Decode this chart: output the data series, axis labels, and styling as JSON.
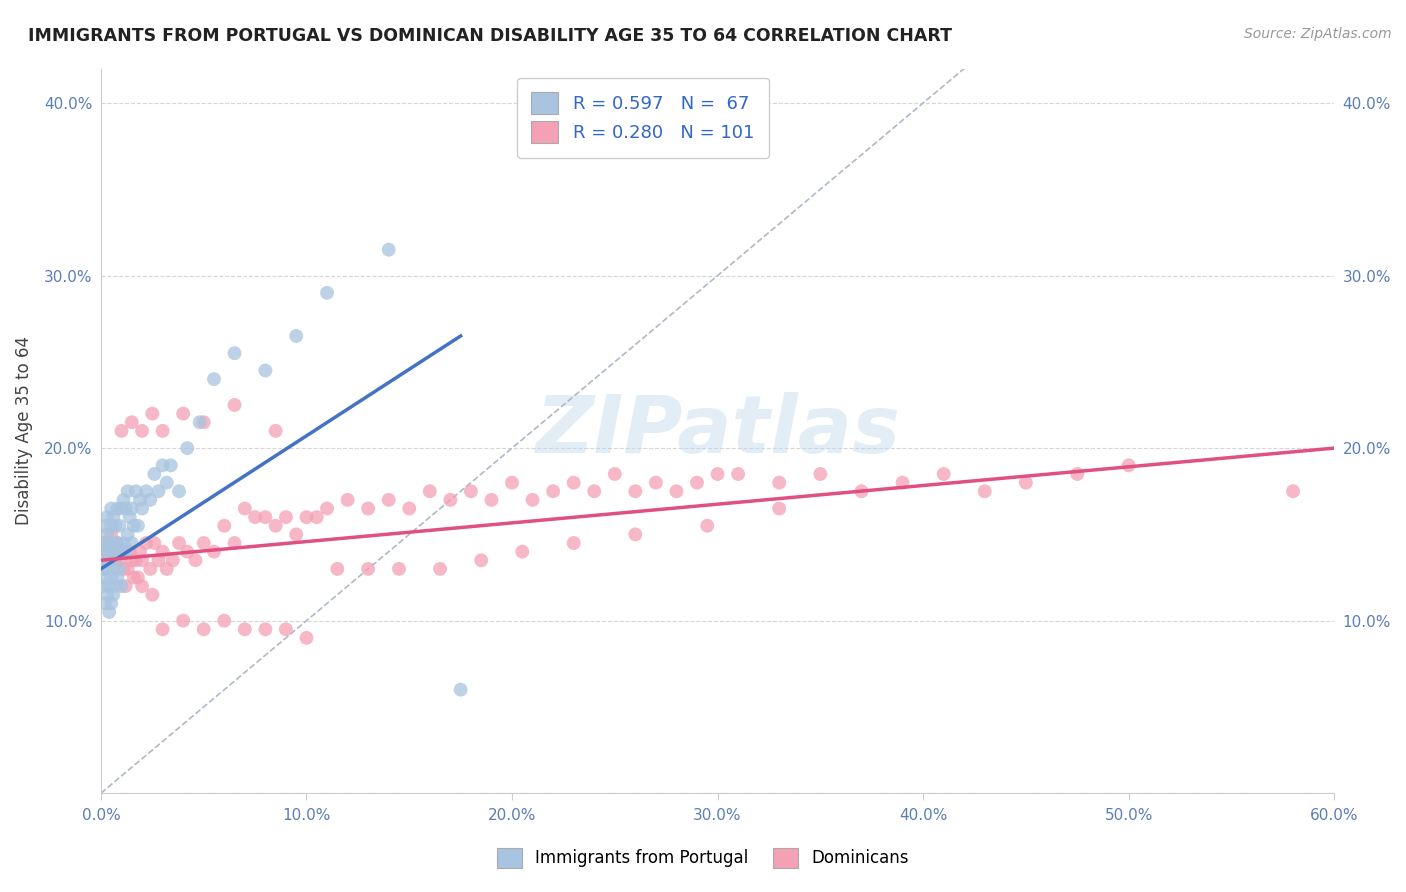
{
  "title": "IMMIGRANTS FROM PORTUGAL VS DOMINICAN DISABILITY AGE 35 TO 64 CORRELATION CHART",
  "source": "Source: ZipAtlas.com",
  "ylabel": "Disability Age 35 to 64",
  "xlim": [
    0.0,
    0.6
  ],
  "ylim": [
    0.0,
    0.42
  ],
  "x_ticks": [
    0.0,
    0.1,
    0.2,
    0.3,
    0.4,
    0.5,
    0.6
  ],
  "y_ticks": [
    0.0,
    0.1,
    0.2,
    0.3,
    0.4
  ],
  "x_tick_labels": [
    "0.0%",
    "10.0%",
    "20.0%",
    "30.0%",
    "40.0%",
    "50.0%",
    "60.0%"
  ],
  "y_tick_labels": [
    "",
    "10.0%",
    "20.0%",
    "30.0%",
    "40.0%"
  ],
  "portugal_color": "#a8c4e0",
  "dominican_color": "#f4a0b5",
  "portugal_line_color": "#4472c4",
  "dominican_line_color": "#e05080",
  "diagonal_color": "#b0b8c8",
  "watermark": "ZIPatlas",
  "legend_R_portugal": "0.597",
  "legend_N_portugal": "67",
  "legend_R_dominican": "0.280",
  "legend_N_dominican": "101",
  "portugal_line_x0": 0.0,
  "portugal_line_y0": 0.13,
  "portugal_line_x1": 0.175,
  "portugal_line_y1": 0.265,
  "dominican_line_x0": 0.0,
  "dominican_line_y0": 0.135,
  "dominican_line_x1": 0.6,
  "dominican_line_y1": 0.2,
  "portugal_x": [
    0.001,
    0.001,
    0.001,
    0.002,
    0.002,
    0.002,
    0.002,
    0.003,
    0.003,
    0.003,
    0.003,
    0.003,
    0.004,
    0.004,
    0.004,
    0.004,
    0.005,
    0.005,
    0.005,
    0.005,
    0.005,
    0.006,
    0.006,
    0.006,
    0.006,
    0.007,
    0.007,
    0.007,
    0.008,
    0.008,
    0.008,
    0.009,
    0.009,
    0.01,
    0.01,
    0.01,
    0.011,
    0.011,
    0.012,
    0.012,
    0.013,
    0.013,
    0.014,
    0.015,
    0.015,
    0.016,
    0.017,
    0.018,
    0.019,
    0.02,
    0.022,
    0.024,
    0.026,
    0.028,
    0.03,
    0.032,
    0.034,
    0.038,
    0.042,
    0.048,
    0.055,
    0.065,
    0.08,
    0.095,
    0.11,
    0.14,
    0.175
  ],
  "portugal_y": [
    0.12,
    0.13,
    0.145,
    0.11,
    0.125,
    0.135,
    0.155,
    0.115,
    0.13,
    0.14,
    0.15,
    0.16,
    0.105,
    0.12,
    0.135,
    0.145,
    0.11,
    0.125,
    0.14,
    0.155,
    0.165,
    0.115,
    0.13,
    0.145,
    0.16,
    0.12,
    0.14,
    0.155,
    0.125,
    0.145,
    0.165,
    0.13,
    0.155,
    0.12,
    0.14,
    0.165,
    0.145,
    0.17,
    0.14,
    0.165,
    0.15,
    0.175,
    0.16,
    0.145,
    0.165,
    0.155,
    0.175,
    0.155,
    0.17,
    0.165,
    0.175,
    0.17,
    0.185,
    0.175,
    0.19,
    0.18,
    0.19,
    0.175,
    0.2,
    0.215,
    0.24,
    0.255,
    0.245,
    0.265,
    0.29,
    0.315,
    0.06
  ],
  "dominican_x": [
    0.002,
    0.003,
    0.004,
    0.005,
    0.006,
    0.007,
    0.008,
    0.009,
    0.01,
    0.011,
    0.012,
    0.013,
    0.014,
    0.015,
    0.016,
    0.017,
    0.018,
    0.019,
    0.02,
    0.022,
    0.024,
    0.026,
    0.028,
    0.03,
    0.032,
    0.035,
    0.038,
    0.042,
    0.046,
    0.05,
    0.055,
    0.06,
    0.065,
    0.07,
    0.075,
    0.08,
    0.085,
    0.09,
    0.095,
    0.1,
    0.11,
    0.12,
    0.13,
    0.14,
    0.15,
    0.16,
    0.17,
    0.18,
    0.19,
    0.2,
    0.21,
    0.22,
    0.23,
    0.24,
    0.25,
    0.26,
    0.27,
    0.28,
    0.29,
    0.3,
    0.31,
    0.33,
    0.35,
    0.37,
    0.39,
    0.41,
    0.43,
    0.45,
    0.475,
    0.5,
    0.02,
    0.025,
    0.03,
    0.04,
    0.05,
    0.06,
    0.07,
    0.08,
    0.09,
    0.1,
    0.115,
    0.13,
    0.145,
    0.165,
    0.185,
    0.205,
    0.23,
    0.26,
    0.295,
    0.33,
    0.01,
    0.015,
    0.02,
    0.025,
    0.03,
    0.04,
    0.05,
    0.065,
    0.085,
    0.105,
    0.58
  ],
  "dominican_y": [
    0.145,
    0.14,
    0.135,
    0.15,
    0.14,
    0.135,
    0.145,
    0.135,
    0.14,
    0.13,
    0.12,
    0.13,
    0.14,
    0.135,
    0.125,
    0.135,
    0.125,
    0.14,
    0.135,
    0.145,
    0.13,
    0.145,
    0.135,
    0.14,
    0.13,
    0.135,
    0.145,
    0.14,
    0.135,
    0.145,
    0.14,
    0.155,
    0.145,
    0.165,
    0.16,
    0.16,
    0.155,
    0.16,
    0.15,
    0.16,
    0.165,
    0.17,
    0.165,
    0.17,
    0.165,
    0.175,
    0.17,
    0.175,
    0.17,
    0.18,
    0.17,
    0.175,
    0.18,
    0.175,
    0.185,
    0.175,
    0.18,
    0.175,
    0.18,
    0.185,
    0.185,
    0.18,
    0.185,
    0.175,
    0.18,
    0.185,
    0.175,
    0.18,
    0.185,
    0.19,
    0.12,
    0.115,
    0.095,
    0.1,
    0.095,
    0.1,
    0.095,
    0.095,
    0.095,
    0.09,
    0.13,
    0.13,
    0.13,
    0.13,
    0.135,
    0.14,
    0.145,
    0.15,
    0.155,
    0.165,
    0.21,
    0.215,
    0.21,
    0.22,
    0.21,
    0.22,
    0.215,
    0.225,
    0.21,
    0.16,
    0.175
  ]
}
